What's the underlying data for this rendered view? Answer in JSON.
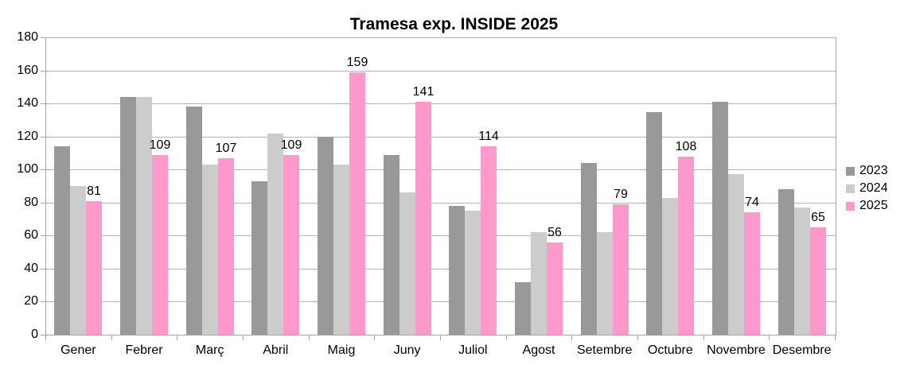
{
  "chart_data": {
    "type": "bar",
    "title": "Tramesa exp. INSIDE 2025",
    "categories": [
      "Gener",
      "Febrer",
      "Març",
      "Abril",
      "Maig",
      "Juny",
      "Juliol",
      "Agost",
      "Setembre",
      "Octubre",
      "Novembre",
      "Desembre"
    ],
    "series": [
      {
        "name": "2023",
        "color": "#999999",
        "data_labels": false,
        "values": [
          114,
          144,
          138,
          93,
          120,
          109,
          78,
          32,
          104,
          135,
          141,
          88
        ]
      },
      {
        "name": "2024",
        "color": "#CCCCCC",
        "data_labels": false,
        "values": [
          90,
          144,
          103,
          122,
          103,
          86,
          75,
          62,
          62,
          83,
          97,
          77
        ]
      },
      {
        "name": "2025",
        "color": "#FF99CC",
        "data_labels": true,
        "values": [
          81,
          109,
          107,
          109,
          159,
          141,
          114,
          56,
          79,
          108,
          74,
          65
        ]
      }
    ],
    "ylim": [
      0,
      180
    ],
    "y_tick_step": 20,
    "grid": "horizontal",
    "legend_position": "right"
  },
  "colors": {
    "grid": "#b3b3b3",
    "axis": "#a6a6a6",
    "text": "#000000",
    "background": "#ffffff"
  }
}
